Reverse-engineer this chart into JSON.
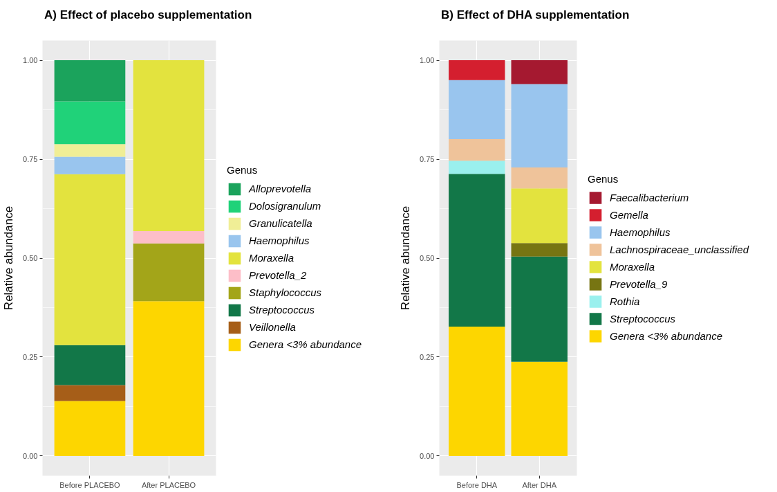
{
  "chart_data": [
    {
      "type": "bar",
      "stacked": true,
      "title": "A) Effect of placebo supplementation",
      "ylabel": "Relative abundance",
      "legend_title": "Genus",
      "legend": "right",
      "grid": true,
      "categories": [
        "Before PLACEBO",
        "After PLACEBO"
      ],
      "ylim": [
        -0.05,
        1.05
      ],
      "yticks": [
        {
          "value": 0,
          "label": "0.00"
        },
        {
          "value": 0.25,
          "label": "0.25"
        },
        {
          "value": 0.5,
          "label": "0.50"
        },
        {
          "value": 0.75,
          "label": "0.75"
        },
        {
          "value": 1,
          "label": "1.00"
        }
      ],
      "series": [
        {
          "name": "Genera <3% abundance",
          "color": "#fdd600",
          "values": [
            0.139,
            0.391
          ]
        },
        {
          "name": "Veillonella",
          "color": "#a65e18",
          "values": [
            0.04,
            null
          ]
        },
        {
          "name": "Streptococcus",
          "color": "#127748",
          "values": [
            0.101,
            null
          ]
        },
        {
          "name": "Staphylococcus",
          "color": "#a3a519",
          "values": [
            null,
            0.146
          ]
        },
        {
          "name": "Prevotella_2",
          "color": "#fdbec8",
          "values": [
            null,
            0.031
          ]
        },
        {
          "name": "Moraxella",
          "color": "#e3e33e",
          "values": [
            0.432,
            0.432
          ]
        },
        {
          "name": "Haemophilus",
          "color": "#99c5ee",
          "values": [
            0.044,
            null
          ]
        },
        {
          "name": "Granulicatella",
          "color": "#f0ee96",
          "values": [
            0.032,
            null
          ]
        },
        {
          "name": "Dolosigranulum",
          "color": "#20d279",
          "values": [
            0.108,
            null
          ]
        },
        {
          "name": "Alloprevotella",
          "color": "#1ba35c",
          "values": [
            0.104,
            null
          ]
        }
      ]
    },
    {
      "type": "bar",
      "stacked": true,
      "title": "B) Effect of DHA supplementation",
      "ylabel": "Relative abundance",
      "legend_title": "Genus",
      "legend": "right",
      "grid": true,
      "categories": [
        "Before DHA",
        "After DHA"
      ],
      "ylim": [
        -0.05,
        1.05
      ],
      "yticks": [
        {
          "value": 0,
          "label": "0.00"
        },
        {
          "value": 0.25,
          "label": "0.25"
        },
        {
          "value": 0.5,
          "label": "0.50"
        },
        {
          "value": 0.75,
          "label": "0.75"
        },
        {
          "value": 1,
          "label": "1.00"
        }
      ],
      "series": [
        {
          "name": "Genera <3% abundance",
          "color": "#fdd600",
          "values": [
            0.327,
            0.238
          ]
        },
        {
          "name": "Streptococcus",
          "color": "#127748",
          "values": [
            0.386,
            0.266
          ]
        },
        {
          "name": "Rothia",
          "color": "#9af0ee",
          "values": [
            0.033,
            null
          ]
        },
        {
          "name": "Prevotella_9",
          "color": "#777512",
          "values": [
            null,
            0.034
          ]
        },
        {
          "name": "Moraxella",
          "color": "#e3e33e",
          "values": [
            null,
            0.138
          ]
        },
        {
          "name": "Lachnospiraceae_unclassified",
          "color": "#efc39a",
          "values": [
            0.055,
            0.053
          ]
        },
        {
          "name": "Haemophilus",
          "color": "#99c5ee",
          "values": [
            0.149,
            0.211
          ]
        },
        {
          "name": "Gemella",
          "color": "#d41f2f",
          "values": [
            0.05,
            null
          ]
        },
        {
          "name": "Faecalibacterium",
          "color": "#a51930",
          "values": [
            null,
            0.06
          ]
        }
      ]
    }
  ]
}
